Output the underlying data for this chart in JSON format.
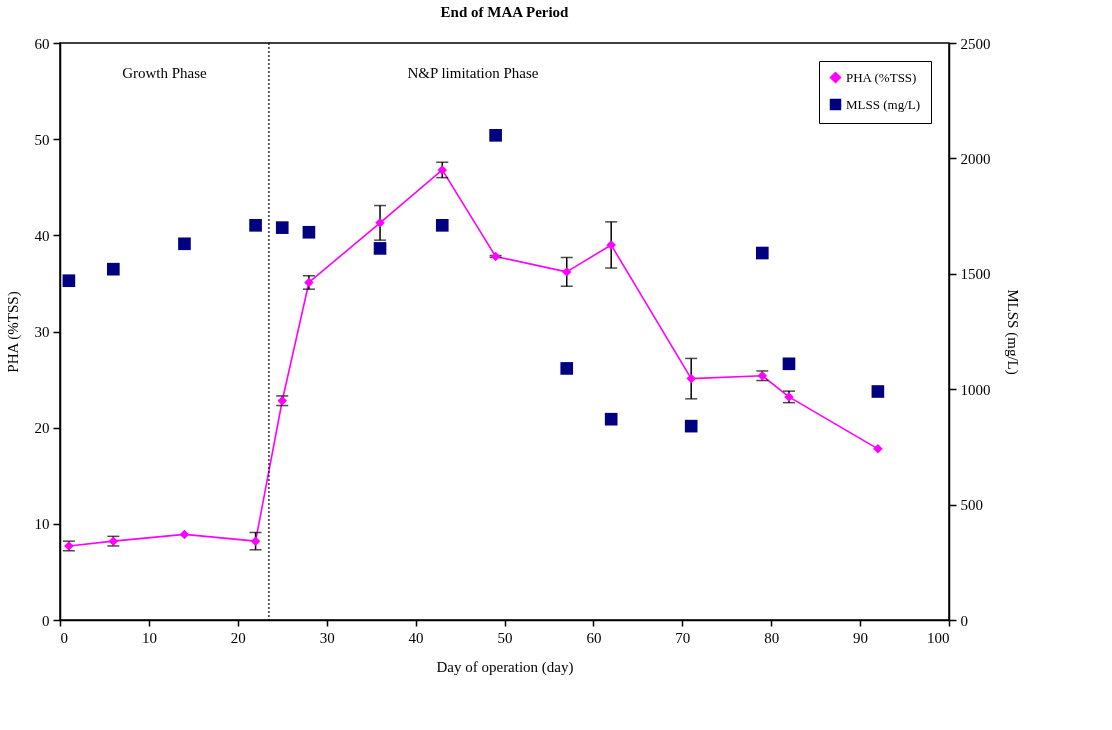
{
  "chart_data": {
    "type": "line",
    "title": "End of MAA Period",
    "xlabel": "Day of operation (day)",
    "ylabel": "PHA (%TSS)",
    "y2label": "MLSS (mg/L)",
    "x": [
      1,
      6,
      14,
      22,
      25,
      28,
      36,
      43,
      49,
      57,
      62,
      71,
      79,
      82,
      92
    ],
    "series": [
      {
        "name": "PHA (%TSS)",
        "type": "line",
        "marker": "diamond",
        "color": "#ff00ff",
        "values": [
          7.7,
          8.2,
          8.9,
          8.2,
          22.8,
          35.1,
          41.3,
          46.8,
          37.8,
          36.2,
          39.0,
          25.1,
          25.4,
          23.2,
          17.8
        ],
        "errors": [
          0.5,
          0.5,
          null,
          0.9,
          0.5,
          0.7,
          1.8,
          0.8,
          0.1,
          1.5,
          2.4,
          2.1,
          0.5,
          0.6,
          null
        ]
      },
      {
        "name": "MLSS (mg/L)",
        "type": "scatter",
        "marker": "square",
        "axis": "y2",
        "color": "#000080",
        "values": [
          1470,
          1520,
          1630,
          1710,
          1700,
          1680,
          1610,
          1710,
          2100,
          1090,
          870,
          840,
          1590,
          1110,
          990
        ]
      }
    ],
    "xlim": [
      0,
      100
    ],
    "xticks": [
      0,
      10,
      20,
      30,
      40,
      50,
      60,
      70,
      80,
      90,
      100
    ],
    "ylim": [
      0,
      60
    ],
    "yticks": [
      0,
      10,
      20,
      30,
      40,
      50,
      60
    ],
    "y2lim": [
      0,
      2500
    ],
    "y2ticks": [
      0,
      500,
      1000,
      1500,
      2000,
      2500
    ],
    "ref_lines": [
      {
        "axis": "x",
        "value": 23.5,
        "color": "#000000",
        "line_style": "dotted"
      }
    ],
    "annotations": [
      "Growth Phase",
      "N&P limitation Phase"
    ],
    "grid": false,
    "legend": "top right"
  }
}
